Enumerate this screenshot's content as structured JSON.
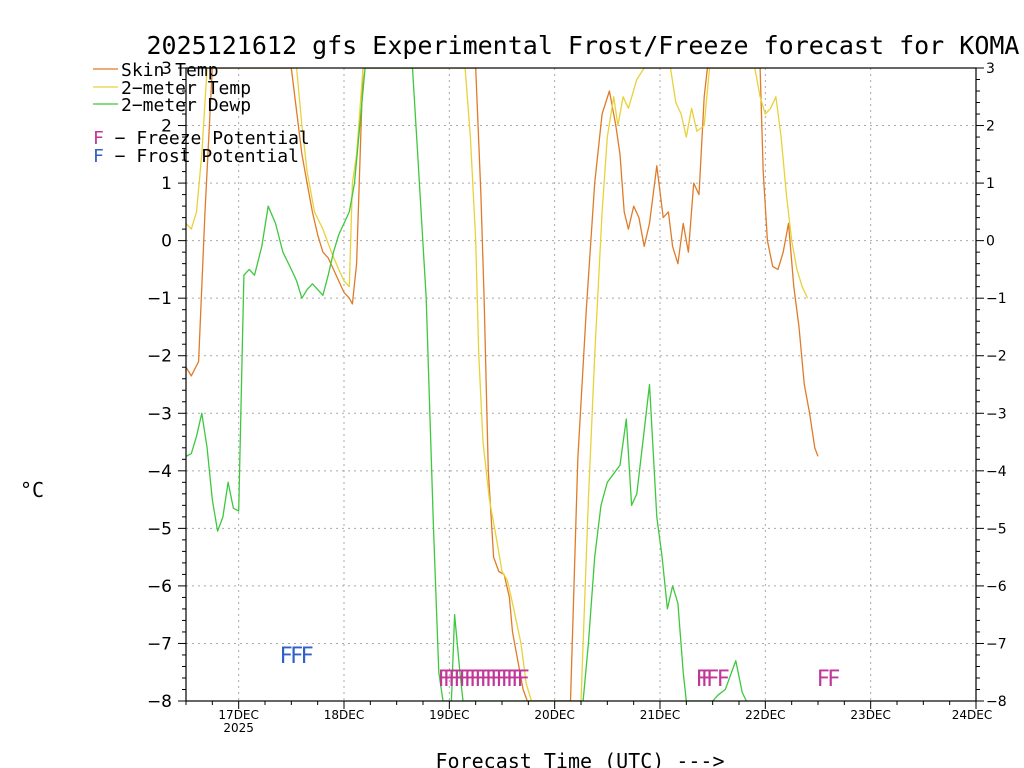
{
  "chart_data": {
    "type": "line",
    "title": "2025121612 gfs Experimental Frost/Freeze forecast for KOMA",
    "ylabel": "°C",
    "xlabel": "Forecast Time (UTC) --->",
    "ylim": [
      -8,
      3
    ],
    "xlim": [
      16.5,
      24.0
    ],
    "y_ticks": [
      "−8",
      "−7",
      "−6",
      "−5",
      "−4",
      "−3",
      "−2",
      "−1",
      "0",
      "1",
      "2",
      "3"
    ],
    "y_tick_values": [
      -8,
      -7,
      -6,
      -5,
      -4,
      -3,
      -2,
      -1,
      0,
      1,
      2,
      3
    ],
    "x_ticks": [
      "17DEC",
      "18DEC",
      "19DEC",
      "20DEC",
      "21DEC",
      "22DEC",
      "23DEC",
      "24DEC"
    ],
    "x_tick_values": [
      17,
      18,
      19,
      20,
      21,
      22,
      23,
      24
    ],
    "x_year_label": "2025",
    "grid": true,
    "series": [
      {
        "name": "Skin Temp",
        "color": "#e07b28",
        "points": [
          [
            16.5,
            -2.2
          ],
          [
            16.55,
            -2.35
          ],
          [
            16.62,
            -2.1
          ],
          [
            16.68,
            0.5
          ],
          [
            16.75,
            3.5
          ],
          [
            17.5,
            3.5
          ],
          [
            17.6,
            1.5
          ],
          [
            17.65,
            1.0
          ],
          [
            17.7,
            0.5
          ],
          [
            17.75,
            0.1
          ],
          [
            17.8,
            -0.2
          ],
          [
            17.85,
            -0.3
          ],
          [
            17.9,
            -0.5
          ],
          [
            17.95,
            -0.7
          ],
          [
            18.0,
            -0.9
          ],
          [
            18.05,
            -1.0
          ],
          [
            18.08,
            -1.1
          ],
          [
            18.12,
            -0.4
          ],
          [
            18.18,
            3.5
          ],
          [
            19.25,
            3.5
          ],
          [
            19.3,
            0.8
          ],
          [
            19.33,
            -1.0
          ],
          [
            19.37,
            -4.0
          ],
          [
            19.42,
            -5.5
          ],
          [
            19.47,
            -5.75
          ],
          [
            19.52,
            -5.8
          ],
          [
            19.57,
            -6.2
          ],
          [
            19.6,
            -6.8
          ],
          [
            19.65,
            -7.3
          ],
          [
            19.7,
            -7.8
          ],
          [
            19.74,
            -8.0
          ],
          [
            20.15,
            -8.0
          ],
          [
            20.22,
            -3.8
          ],
          [
            20.3,
            -1.2
          ],
          [
            20.38,
            1.0
          ],
          [
            20.45,
            2.2
          ],
          [
            20.52,
            2.6
          ],
          [
            20.58,
            2.0
          ],
          [
            20.62,
            1.5
          ],
          [
            20.66,
            0.5
          ],
          [
            20.7,
            0.2
          ],
          [
            20.75,
            0.6
          ],
          [
            20.8,
            0.4
          ],
          [
            20.85,
            -0.1
          ],
          [
            20.9,
            0.3
          ],
          [
            20.97,
            1.3
          ],
          [
            21.03,
            0.4
          ],
          [
            21.08,
            0.5
          ],
          [
            21.12,
            -0.1
          ],
          [
            21.17,
            -0.4
          ],
          [
            21.22,
            0.3
          ],
          [
            21.27,
            -0.2
          ],
          [
            21.32,
            1.0
          ],
          [
            21.37,
            0.8
          ],
          [
            21.42,
            2.5
          ],
          [
            21.45,
            3.5
          ],
          [
            21.95,
            3.5
          ],
          [
            21.98,
            1.2
          ],
          [
            22.02,
            0.0
          ],
          [
            22.07,
            -0.45
          ],
          [
            22.12,
            -0.5
          ],
          [
            22.17,
            -0.2
          ],
          [
            22.22,
            0.3
          ],
          [
            22.27,
            -0.8
          ],
          [
            22.32,
            -1.5
          ],
          [
            22.37,
            -2.5
          ],
          [
            22.42,
            -3.0
          ],
          [
            22.47,
            -3.6
          ],
          [
            22.5,
            -3.75
          ]
        ]
      },
      {
        "name": "2-meter Temp",
        "color": "#e8d23a",
        "points": [
          [
            16.5,
            0.3
          ],
          [
            16.55,
            0.2
          ],
          [
            16.6,
            0.5
          ],
          [
            16.65,
            1.5
          ],
          [
            16.7,
            3.5
          ],
          [
            17.55,
            3.5
          ],
          [
            17.6,
            2.0
          ],
          [
            17.65,
            1.2
          ],
          [
            17.72,
            0.5
          ],
          [
            17.8,
            0.2
          ],
          [
            17.88,
            -0.2
          ],
          [
            17.95,
            -0.5
          ],
          [
            18.0,
            -0.7
          ],
          [
            18.05,
            -0.8
          ],
          [
            18.08,
            1.0
          ],
          [
            18.12,
            1.5
          ],
          [
            18.18,
            3.5
          ],
          [
            19.15,
            3.5
          ],
          [
            19.2,
            1.8
          ],
          [
            19.25,
            0.0
          ],
          [
            19.28,
            -2.0
          ],
          [
            19.32,
            -3.5
          ],
          [
            19.38,
            -4.5
          ],
          [
            19.45,
            -5.2
          ],
          [
            19.5,
            -5.75
          ],
          [
            19.55,
            -5.9
          ],
          [
            19.6,
            -6.3
          ],
          [
            19.68,
            -7.0
          ],
          [
            19.73,
            -7.7
          ],
          [
            19.78,
            -8.0
          ],
          [
            20.25,
            -8.0
          ],
          [
            20.32,
            -4.5
          ],
          [
            20.38,
            -2.0
          ],
          [
            20.45,
            0.5
          ],
          [
            20.5,
            1.8
          ],
          [
            20.56,
            2.5
          ],
          [
            20.6,
            2.0
          ],
          [
            20.65,
            2.5
          ],
          [
            20.7,
            2.3
          ],
          [
            20.78,
            2.8
          ],
          [
            20.85,
            3.5
          ],
          [
            21.05,
            3.5
          ],
          [
            21.1,
            3.0
          ],
          [
            21.15,
            2.4
          ],
          [
            21.2,
            2.2
          ],
          [
            21.25,
            1.8
          ],
          [
            21.3,
            2.3
          ],
          [
            21.35,
            1.9
          ],
          [
            21.42,
            2.0
          ],
          [
            21.47,
            3.5
          ],
          [
            21.9,
            3.5
          ],
          [
            21.95,
            2.5
          ],
          [
            22.0,
            2.2
          ],
          [
            22.05,
            2.3
          ],
          [
            22.1,
            2.5
          ],
          [
            22.15,
            1.8
          ],
          [
            22.2,
            0.8
          ],
          [
            22.25,
            0.0
          ],
          [
            22.3,
            -0.5
          ],
          [
            22.35,
            -0.8
          ],
          [
            22.4,
            -1.0
          ]
        ]
      },
      {
        "name": "2-meter Dewp",
        "color": "#3ec83e",
        "points": [
          [
            16.5,
            -3.75
          ],
          [
            16.55,
            -3.7
          ],
          [
            16.6,
            -3.4
          ],
          [
            16.65,
            -3.0
          ],
          [
            16.7,
            -3.6
          ],
          [
            16.75,
            -4.5
          ],
          [
            16.8,
            -5.05
          ],
          [
            16.85,
            -4.8
          ],
          [
            16.9,
            -4.2
          ],
          [
            16.95,
            -4.65
          ],
          [
            17.0,
            -4.7
          ],
          [
            17.05,
            -0.6
          ],
          [
            17.1,
            -0.5
          ],
          [
            17.15,
            -0.6
          ],
          [
            17.22,
            -0.1
          ],
          [
            17.28,
            0.6
          ],
          [
            17.35,
            0.3
          ],
          [
            17.42,
            -0.2
          ],
          [
            17.5,
            -0.5
          ],
          [
            17.55,
            -0.7
          ],
          [
            17.6,
            -1.0
          ],
          [
            17.65,
            -0.85
          ],
          [
            17.7,
            -0.75
          ],
          [
            17.75,
            -0.85
          ],
          [
            17.8,
            -0.95
          ],
          [
            17.85,
            -0.6
          ],
          [
            17.9,
            -0.2
          ],
          [
            17.95,
            0.1
          ],
          [
            18.0,
            0.3
          ],
          [
            18.05,
            0.5
          ],
          [
            18.1,
            1.0
          ],
          [
            18.15,
            2.0
          ],
          [
            18.2,
            3.5
          ],
          [
            18.65,
            3.5
          ],
          [
            18.7,
            1.5
          ],
          [
            18.78,
            -1.0
          ],
          [
            18.85,
            -5.0
          ],
          [
            18.9,
            -7.5
          ],
          [
            18.94,
            -8.0
          ],
          [
            19.02,
            -8.0
          ],
          [
            19.05,
            -6.5
          ],
          [
            19.1,
            -7.5
          ],
          [
            19.13,
            -8.0
          ],
          [
            20.27,
            -8.0
          ],
          [
            20.32,
            -7.0
          ],
          [
            20.38,
            -5.5
          ],
          [
            20.44,
            -4.6
          ],
          [
            20.5,
            -4.2
          ],
          [
            20.56,
            -4.05
          ],
          [
            20.62,
            -3.9
          ],
          [
            20.68,
            -3.1
          ],
          [
            20.73,
            -4.6
          ],
          [
            20.78,
            -4.4
          ],
          [
            20.85,
            -3.3
          ],
          [
            20.9,
            -2.5
          ],
          [
            20.97,
            -4.8
          ],
          [
            21.02,
            -5.5
          ],
          [
            21.07,
            -6.4
          ],
          [
            21.12,
            -6.0
          ],
          [
            21.17,
            -6.3
          ],
          [
            21.22,
            -7.5
          ],
          [
            21.25,
            -8.0
          ],
          [
            21.5,
            -8.0
          ],
          [
            21.55,
            -7.9
          ],
          [
            21.62,
            -7.8
          ],
          [
            21.68,
            -7.5
          ],
          [
            21.72,
            -7.3
          ],
          [
            21.78,
            -7.85
          ],
          [
            21.82,
            -8.0
          ]
        ]
      }
    ],
    "markers": [
      {
        "label": "Freeze Potential",
        "glyph": "F",
        "color": "#c0379a",
        "x": [
          18.95,
          19.0,
          19.05,
          19.1,
          19.15,
          19.2,
          19.25,
          19.3,
          19.35,
          19.4,
          19.45,
          19.5,
          19.55,
          19.6,
          19.65,
          19.7,
          21.4,
          21.45,
          21.5,
          21.6,
          22.55,
          22.65
        ],
        "y": -7.6
      },
      {
        "label": "Frost Potential",
        "glyph": "F",
        "color": "#3060c8",
        "x": [
          17.45,
          17.55,
          17.65
        ],
        "y": -7.2
      }
    ],
    "legend": {
      "skin_temp": "Skin Temp",
      "temp_2m": "2−meter Temp",
      "dewp_2m": "2−meter Dewp",
      "freeze_glyph": "F",
      "freeze_text": " − Freeze Potential",
      "frost_glyph": "F",
      "frost_text": " − Frost Potential"
    }
  }
}
